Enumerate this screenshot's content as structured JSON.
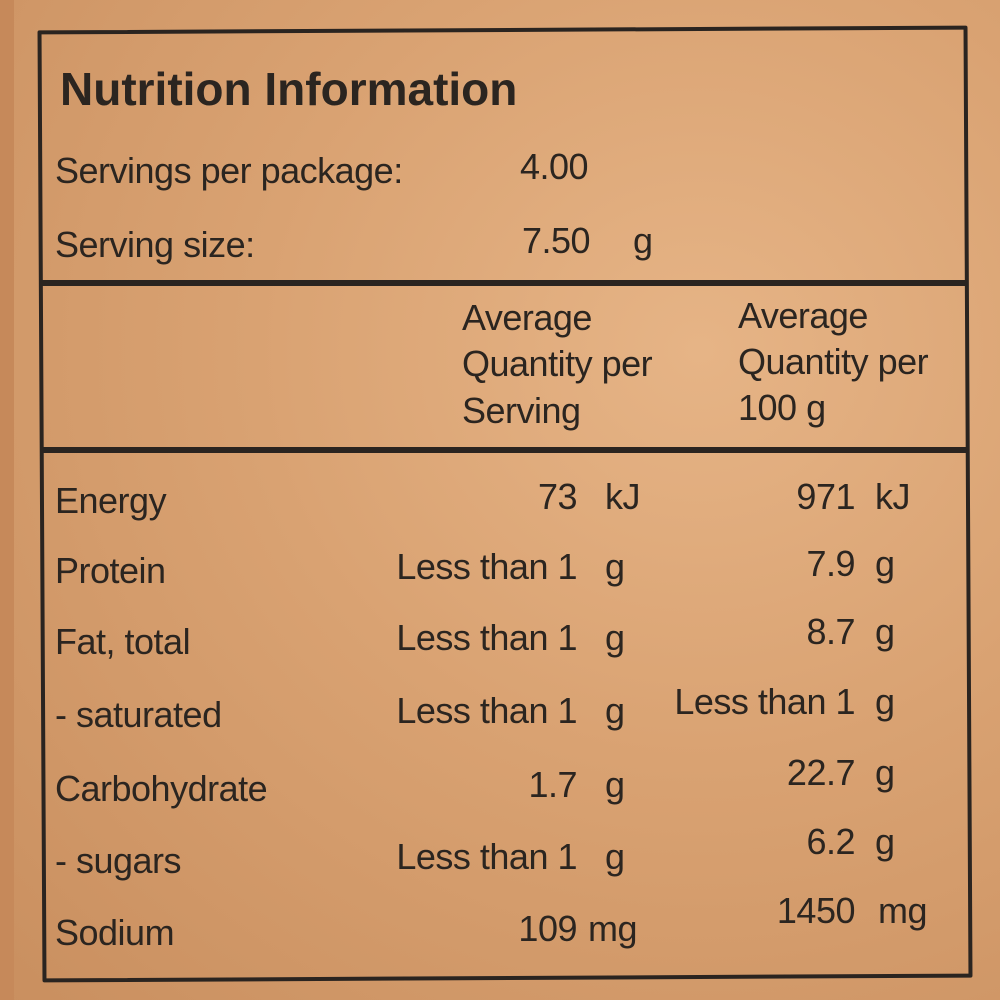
{
  "title": "Nutrition Information",
  "servings_per_package": {
    "label": "Servings per package:",
    "value": "4.00"
  },
  "serving_size": {
    "label": "Serving size:",
    "value": "7.50",
    "unit": "g"
  },
  "columns": [
    {
      "line1": "Average",
      "line2": "Quantity per",
      "line3": "Serving"
    },
    {
      "line1": "Average",
      "line2": "Quantity per",
      "line3": "100 g"
    }
  ],
  "rows": [
    {
      "name": "Energy",
      "serving": "73",
      "serving_unit": "kJ",
      "per100": "971",
      "per100_unit": "kJ"
    },
    {
      "name": "Protein",
      "serving": "Less than 1",
      "serving_unit": "g",
      "per100": "7.9",
      "per100_unit": "g"
    },
    {
      "name": "Fat, total",
      "serving": "Less than 1",
      "serving_unit": "g",
      "per100": "8.7",
      "per100_unit": "g"
    },
    {
      "name": "- saturated",
      "serving": "Less than 1",
      "serving_unit": "g",
      "per100": "Less than 1",
      "per100_unit": "g"
    },
    {
      "name": "Carbohydrate",
      "serving": "1.7",
      "serving_unit": "g",
      "per100": "22.7",
      "per100_unit": "g"
    },
    {
      "name": "- sugars",
      "serving": "Less than 1",
      "serving_unit": "g",
      "per100": "6.2",
      "per100_unit": "g"
    },
    {
      "name": "Sodium",
      "serving": "109",
      "serving_unit": "mg",
      "per100": "1450",
      "per100_unit": "mg"
    }
  ]
}
